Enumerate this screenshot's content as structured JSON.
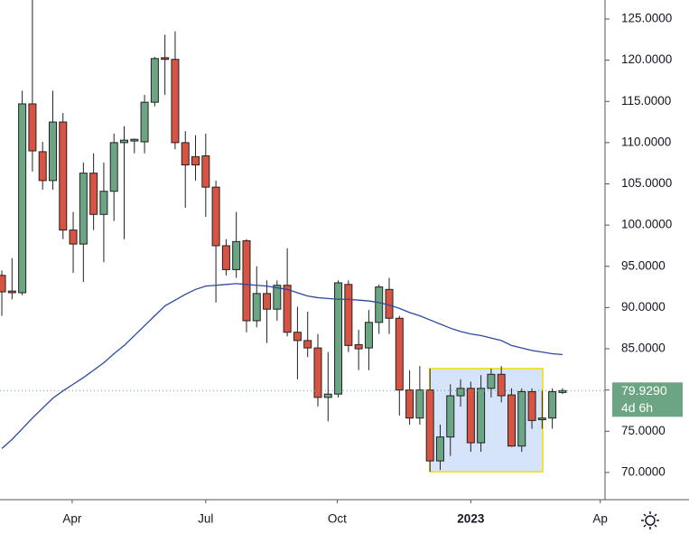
{
  "chart_data": {
    "type": "candlestick",
    "x": [
      0,
      1,
      2,
      3,
      4,
      5,
      6,
      7,
      8,
      9,
      10,
      11,
      12,
      13,
      14,
      15,
      16,
      17,
      18,
      19,
      20,
      21,
      22,
      23,
      24,
      25,
      26,
      27,
      28,
      29,
      30,
      31,
      32,
      33,
      34,
      35,
      36,
      37,
      38,
      39,
      40,
      41,
      42,
      43,
      44,
      45,
      46,
      47,
      48,
      49,
      50,
      51,
      52,
      53,
      54,
      55
    ],
    "open": [
      93.9,
      92.0,
      91.8,
      114.7,
      108.9,
      105.4,
      112.5,
      99.4,
      97.7,
      106.3,
      101.3,
      104.1,
      110.0,
      110.2,
      110.1,
      114.9,
      120.3,
      120.1,
      110.0,
      108.3,
      108.4,
      104.6,
      97.5,
      94.6,
      98.1,
      88.4,
      91.7,
      89.8,
      92.7,
      87.0,
      86.0,
      85.1,
      79.1,
      79.5,
      92.8,
      85.5,
      85.1,
      88.2,
      92.2,
      88.7,
      80.0,
      76.6,
      80.0,
      71.4,
      74.3,
      79.3,
      80.2,
      73.6,
      80.2,
      81.9,
      79.4,
      73.2,
      79.8,
      76.4,
      76.6,
      79.7
    ],
    "high": [
      94.5,
      96,
      116.3,
      127.5,
      110.1,
      116.3,
      113.6,
      101.6,
      107.6,
      108.7,
      107.6,
      111.1,
      112,
      110.5,
      115.8,
      120.4,
      123.1,
      123.5,
      111.4,
      110.9,
      111.1,
      105.4,
      98.3,
      101.6,
      98.3,
      95,
      93.3,
      93.3,
      97.2,
      90.1,
      89.5,
      86.8,
      84.6,
      93.3,
      93.3,
      87.3,
      89.7,
      92.8,
      93.6,
      89.0,
      82.4,
      82.9,
      82.6,
      75.8,
      80.7,
      81.3,
      81.0,
      81.8,
      82.6,
      82.9,
      80.2,
      80.2,
      80.2,
      80.0,
      80.2,
      80.2
    ],
    "low": [
      89,
      91,
      91.5,
      106.5,
      104.3,
      104.3,
      98.3,
      94.2,
      93.1,
      99.4,
      95.5,
      100.5,
      98.3,
      108.7,
      108.7,
      114.4,
      115.8,
      109.2,
      102.1,
      105.4,
      101.0,
      90.6,
      93.9,
      93.6,
      87.0,
      87.6,
      85.7,
      88.4,
      86.5,
      81.3,
      84.0,
      78.0,
      76.2,
      79.1,
      84.6,
      82.4,
      82.4,
      86.8,
      86.8,
      76.9,
      75.8,
      75.8,
      70.1,
      70.3,
      72.0,
      78.0,
      72.5,
      72.5,
      79.1,
      78.5,
      73.1,
      72.5,
      75.3,
      75.3,
      75.3,
      79.5
    ],
    "close": [
      91.9,
      91.8,
      114.7,
      109.0,
      105.4,
      112.5,
      99.4,
      97.7,
      106.3,
      101.3,
      104.1,
      110.0,
      110.3,
      110.4,
      114.9,
      120.2,
      120.1,
      110.0,
      107.3,
      107.3,
      104.6,
      97.5,
      94.6,
      98.0,
      88.4,
      91.7,
      89.8,
      92.7,
      87.0,
      86.0,
      85.1,
      79.1,
      79.5,
      93.0,
      85.4,
      85.0,
      88.2,
      92.5,
      88.7,
      80.0,
      76.6,
      80.0,
      71.4,
      74.3,
      79.3,
      80.2,
      73.6,
      80.2,
      81.9,
      79.3,
      73.2,
      79.8,
      76.3,
      76.6,
      79.8,
      79.929
    ],
    "up_color": "#6ba583",
    "down_color": "#d75442",
    "moving_average": {
      "color": "#2a4aa0",
      "values": [
        72.9,
        74.0,
        75.3,
        76.6,
        77.8,
        79.0,
        79.9,
        80.7,
        81.5,
        82.4,
        83.3,
        84.4,
        85.4,
        86.6,
        87.8,
        89.0,
        90.2,
        90.9,
        91.6,
        92.2,
        92.6,
        92.7,
        92.8,
        92.9,
        92.8,
        92.7,
        92.6,
        92.4,
        92.2,
        91.8,
        91.4,
        91.2,
        91.1,
        91.0,
        91.0,
        90.9,
        90.8,
        90.6,
        90.3,
        89.9,
        89.4,
        89.0,
        88.5,
        88.0,
        87.5,
        87.1,
        86.8,
        86.6,
        86.3,
        86.0,
        85.4,
        85.1,
        84.8,
        84.6,
        84.4,
        84.3
      ]
    },
    "xlim": [
      -0.18,
      59.17
    ],
    "xticks": [
      {
        "value": 6.9,
        "label": "Apr"
      },
      {
        "value": 20.0,
        "label": "Jul"
      },
      {
        "value": 32.9,
        "label": "Oct"
      },
      {
        "value": 46.0,
        "label": "2023"
      },
      {
        "value": 58.7,
        "label": "Ap"
      }
    ],
    "ylim": [
      66.7,
      127.3
    ],
    "yticks": [
      {
        "value": 70,
        "label": "70.0000"
      },
      {
        "value": 75,
        "label": "75.0000"
      },
      {
        "value": 80,
        "label": "80.0000"
      },
      {
        "value": 85,
        "label": "85.0000"
      },
      {
        "value": 90,
        "label": "90.0000"
      },
      {
        "value": 95,
        "label": "95.0000"
      },
      {
        "value": 100,
        "label": "100.0000"
      },
      {
        "value": 105,
        "label": "105.0000"
      },
      {
        "value": 110,
        "label": "110.0000"
      },
      {
        "value": 115,
        "label": "115.0000"
      },
      {
        "value": 120,
        "label": "120.0000"
      },
      {
        "value": 125,
        "label": "125.0000"
      }
    ],
    "last_price": 79.929,
    "last_price_label": "79.9290",
    "countdown": "4d 6h"
  }
}
